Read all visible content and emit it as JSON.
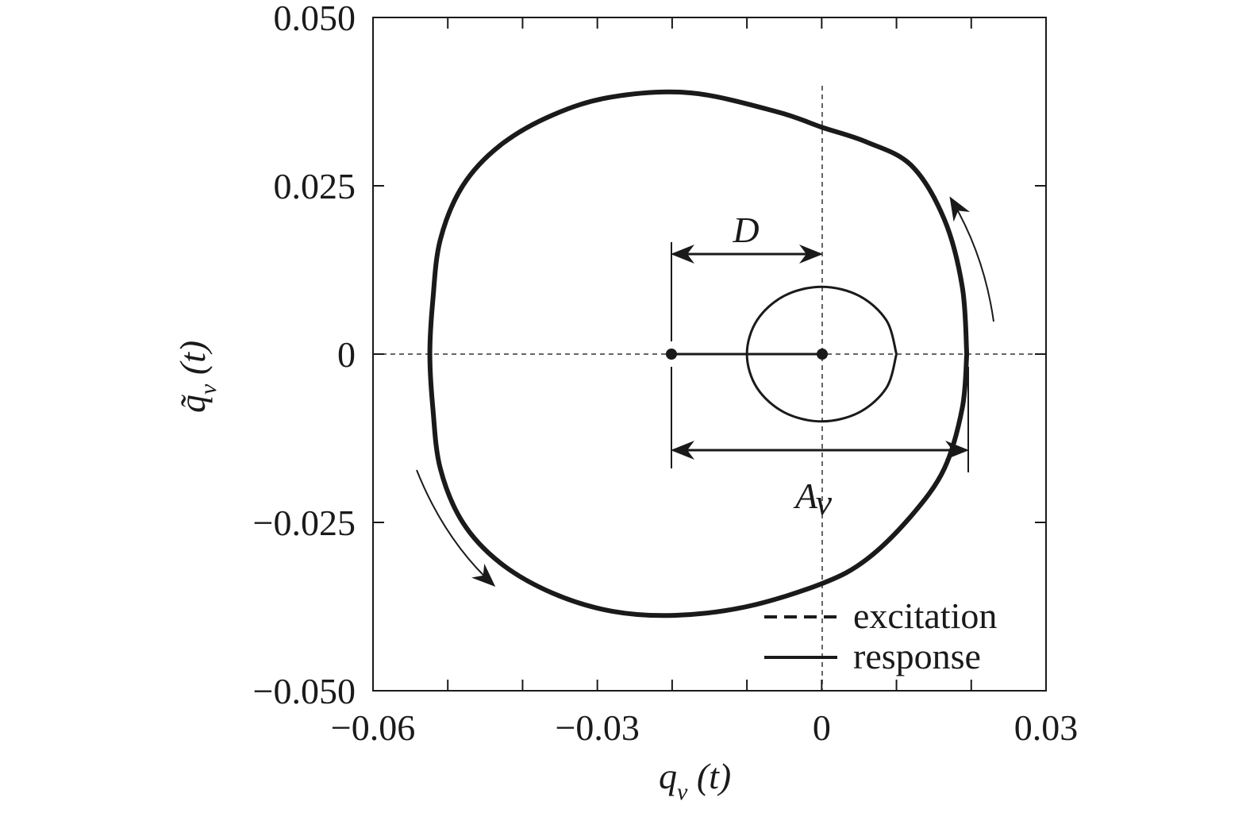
{
  "chart_data": {
    "type": "line",
    "x_label": [
      "q",
      "v",
      " (t)"
    ],
    "y_label": [
      "q̃",
      "v",
      " (t)"
    ],
    "annotations": {
      "D": "D",
      "A": [
        "A",
        "v"
      ]
    },
    "xlim": [
      -0.06,
      0.03
    ],
    "ylim": [
      -0.05,
      0.05
    ],
    "xticks": [
      {
        "value": -0.06,
        "label": "−0.06"
      },
      {
        "value": -0.03,
        "label": "−0.03"
      },
      0,
      0.03
    ],
    "xminorticks": [
      -0.05,
      -0.04,
      -0.02,
      -0.01,
      0.01,
      0.02
    ],
    "yticks": [
      {
        "value": 0.05,
        "label": "0.050"
      },
      0.025,
      0,
      {
        "value": -0.025,
        "label": "−0.025"
      },
      {
        "value": -0.05,
        "label": "−0.050"
      }
    ],
    "series": [
      {
        "name": "excitation",
        "color": "#1a1a1a",
        "legend_dash": true,
        "width": 3,
        "x": [
          0.01,
          0.00866,
          0.005,
          0,
          -0.005,
          -0.00866,
          -0.01,
          -0.00866,
          -0.005,
          0,
          0.005,
          0.00866,
          0.01
        ],
        "values": [
          0,
          0.005,
          0.00866,
          0.01,
          0.00866,
          0.005,
          0,
          -0.005,
          -0.00866,
          -0.01,
          -0.00866,
          -0.005,
          0
        ]
      },
      {
        "name": "response",
        "color": "#1a1a1a",
        "legend_dash": false,
        "width": 6,
        "x": [
          0.0194,
          0.0188,
          0.0164,
          0.012,
          0.006,
          0,
          -0.006,
          -0.0175,
          -0.028,
          -0.036,
          -0.043,
          -0.048,
          -0.051,
          -0.052,
          -0.0524,
          -0.052,
          -0.051,
          -0.048,
          -0.043,
          -0.036,
          -0.028,
          -0.0195,
          -0.01,
          0,
          0.006,
          0.012,
          0.0164,
          0.0188,
          0.0194
        ],
        "values": [
          0,
          0.01,
          0.02,
          0.028,
          0.0315,
          0.0337,
          0.036,
          0.0388,
          0.0382,
          0.0355,
          0.031,
          0.025,
          0.017,
          0.008,
          0,
          -0.008,
          -0.017,
          -0.025,
          -0.031,
          -0.0355,
          -0.0382,
          -0.0388,
          -0.0375,
          -0.0341,
          -0.0305,
          -0.024,
          -0.017,
          -0.008,
          0
        ]
      }
    ]
  }
}
